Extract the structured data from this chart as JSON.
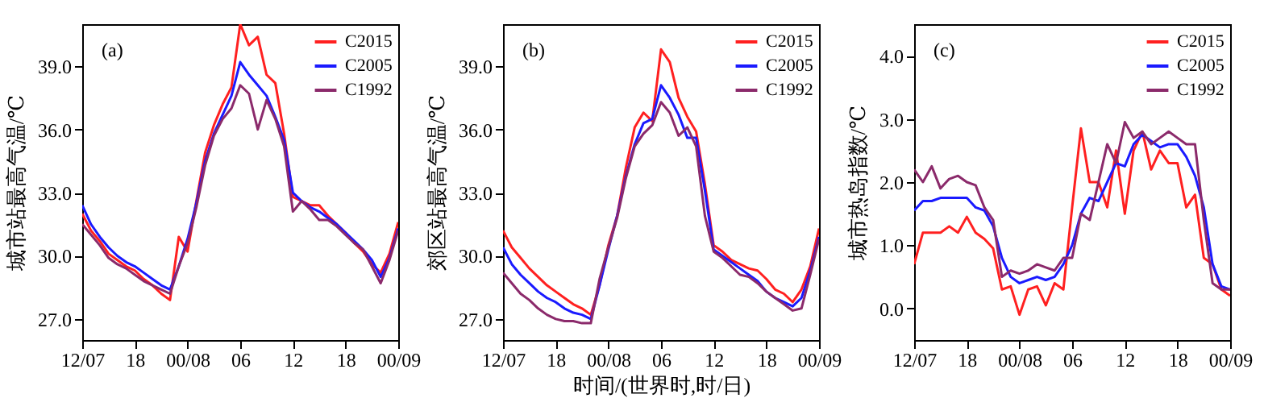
{
  "chart_data": [
    {
      "type": "line",
      "ylabel": "城市站最高气温/℃",
      "annotations": [
        "(a)"
      ],
      "categories": [
        "12/07",
        null,
        null,
        null,
        null,
        null,
        "18",
        null,
        null,
        null,
        null,
        null,
        "00/08",
        null,
        null,
        null,
        null,
        null,
        "06",
        null,
        null,
        null,
        null,
        null,
        "12",
        null,
        null,
        null,
        null,
        null,
        "18",
        null,
        null,
        null,
        null,
        null,
        "00/09"
      ],
      "ylim": [
        26,
        41
      ],
      "yticks": [
        {
          "value": 27,
          "label": "27.0"
        },
        {
          "value": 30,
          "label": "30.0"
        },
        {
          "value": 33,
          "label": "33.0"
        },
        {
          "value": 36,
          "label": "36.0"
        },
        {
          "value": 39,
          "label": "39.0"
        }
      ],
      "grid": false,
      "legend": "top right",
      "line_style": "solid",
      "marker": "none",
      "series": [
        {
          "name": "C2015",
          "color": "#ff2020",
          "values": [
            32.0,
            31.2,
            30.7,
            30.1,
            29.8,
            29.5,
            29.3,
            28.9,
            28.6,
            28.2,
            27.9,
            30.9,
            30.2,
            32.6,
            34.9,
            36.2,
            37.2,
            38.0,
            41.0,
            40.0,
            40.4,
            38.6,
            38.2,
            35.8,
            32.8,
            32.6,
            32.4,
            32.4,
            31.9,
            31.5,
            31.1,
            30.6,
            30.2,
            29.6,
            29.2,
            30.1,
            31.6
          ]
        },
        {
          "name": "C2005",
          "color": "#1a1aff",
          "values": [
            32.4,
            31.5,
            30.9,
            30.4,
            30.0,
            29.7,
            29.5,
            29.2,
            28.9,
            28.6,
            28.4,
            29.5,
            30.8,
            32.5,
            34.5,
            35.8,
            36.7,
            37.6,
            39.2,
            38.6,
            38.1,
            37.6,
            36.6,
            35.5,
            33.0,
            32.6,
            32.3,
            32.1,
            31.8,
            31.5,
            31.1,
            30.7,
            30.3,
            29.8,
            29.0,
            29.9,
            31.3
          ]
        },
        {
          "name": "C1992",
          "color": "#8b2a6b",
          "values": [
            31.5,
            31.0,
            30.5,
            29.9,
            29.6,
            29.4,
            29.1,
            28.8,
            28.6,
            28.4,
            28.2,
            29.5,
            30.6,
            32.3,
            34.3,
            35.7,
            36.5,
            37.0,
            38.1,
            37.7,
            36.0,
            37.4,
            36.5,
            35.2,
            32.1,
            32.6,
            32.2,
            31.7,
            31.7,
            31.4,
            31.0,
            30.6,
            30.3,
            29.5,
            28.7,
            29.8,
            31.2
          ]
        }
      ]
    },
    {
      "type": "line",
      "ylabel": "郊区站最高气温/℃",
      "xlabel": "时间/(世界时,时/日)",
      "annotations": [
        "(b)"
      ],
      "categories": [
        "12/07",
        null,
        null,
        null,
        null,
        null,
        "18",
        null,
        null,
        null,
        null,
        null,
        "00/08",
        null,
        null,
        null,
        null,
        null,
        "06",
        null,
        null,
        null,
        null,
        null,
        "12",
        null,
        null,
        null,
        null,
        null,
        "18",
        null,
        null,
        null,
        null,
        null,
        "00/09"
      ],
      "ylim": [
        26,
        41
      ],
      "yticks": [
        {
          "value": 27,
          "label": "27.0"
        },
        {
          "value": 30,
          "label": "30.0"
        },
        {
          "value": 33,
          "label": "33.0"
        },
        {
          "value": 36,
          "label": "36.0"
        },
        {
          "value": 39,
          "label": "39.0"
        }
      ],
      "grid": false,
      "legend": "top right",
      "line_style": "solid",
      "marker": "none",
      "series": [
        {
          "name": "C2015",
          "color": "#ff2020",
          "values": [
            31.2,
            30.4,
            29.9,
            29.4,
            29.0,
            28.6,
            28.3,
            28.0,
            27.7,
            27.5,
            27.2,
            28.6,
            30.5,
            31.9,
            34.2,
            36.1,
            36.8,
            36.4,
            39.8,
            39.2,
            37.5,
            36.6,
            35.9,
            33.4,
            30.5,
            30.2,
            29.8,
            29.6,
            29.4,
            29.3,
            28.9,
            28.4,
            28.2,
            27.8,
            28.4,
            29.5,
            31.3
          ]
        },
        {
          "name": "C2005",
          "color": "#1a1aff",
          "values": [
            30.4,
            29.6,
            29.1,
            28.7,
            28.3,
            28.0,
            27.8,
            27.5,
            27.3,
            27.2,
            27.0,
            28.6,
            30.3,
            31.9,
            33.8,
            35.3,
            36.3,
            36.5,
            38.1,
            37.5,
            36.7,
            35.6,
            35.6,
            33.1,
            30.3,
            30.0,
            29.7,
            29.4,
            29.1,
            28.8,
            28.3,
            28.0,
            27.8,
            27.6,
            28.0,
            29.3,
            30.9
          ]
        },
        {
          "name": "C1992",
          "color": "#8b2a6b",
          "values": [
            29.2,
            28.7,
            28.2,
            27.9,
            27.5,
            27.2,
            27.0,
            26.9,
            26.9,
            26.8,
            26.8,
            28.9,
            30.4,
            31.8,
            33.7,
            35.2,
            35.8,
            36.2,
            37.3,
            36.8,
            35.7,
            36.1,
            35.2,
            31.9,
            30.2,
            29.9,
            29.5,
            29.1,
            29.0,
            28.7,
            28.3,
            28.0,
            27.7,
            27.4,
            27.5,
            29.1,
            30.8
          ]
        }
      ]
    },
    {
      "type": "line",
      "ylabel": "城市热岛指数/℃",
      "annotations": [
        "(c)"
      ],
      "categories": [
        "12/07",
        null,
        null,
        null,
        null,
        null,
        "18",
        null,
        null,
        null,
        null,
        null,
        "00/08",
        null,
        null,
        null,
        null,
        null,
        "06",
        null,
        null,
        null,
        null,
        null,
        "12",
        null,
        null,
        null,
        null,
        null,
        "18",
        null,
        null,
        null,
        null,
        null,
        "00/09"
      ],
      "ylim": [
        -0.5,
        4.5
      ],
      "yticks": [
        {
          "value": 0,
          "label": "0.0"
        },
        {
          "value": 1,
          "label": "1.0"
        },
        {
          "value": 2,
          "label": "2.0"
        },
        {
          "value": 3,
          "label": "3.0"
        },
        {
          "value": 4,
          "label": "4.0"
        }
      ],
      "grid": false,
      "legend": "top right",
      "line_style": "solid",
      "marker": "none",
      "series": [
        {
          "name": "C2015",
          "color": "#ff2020",
          "values": [
            0.7,
            1.2,
            1.2,
            1.2,
            1.3,
            1.2,
            1.45,
            1.2,
            1.1,
            0.95,
            0.3,
            0.35,
            -0.1,
            0.3,
            0.35,
            0.05,
            0.4,
            0.3,
            1.6,
            2.85,
            2.0,
            2.0,
            1.6,
            2.5,
            1.5,
            2.5,
            2.8,
            2.2,
            2.5,
            2.3,
            2.3,
            1.6,
            1.8,
            0.8,
            0.7,
            0.3,
            0.2
          ]
        },
        {
          "name": "C2005",
          "color": "#1a1aff",
          "values": [
            1.55,
            1.7,
            1.7,
            1.75,
            1.75,
            1.75,
            1.75,
            1.6,
            1.55,
            1.3,
            0.8,
            0.5,
            0.4,
            0.45,
            0.5,
            0.45,
            0.5,
            0.7,
            1.0,
            1.5,
            1.75,
            1.7,
            2.0,
            2.3,
            2.25,
            2.6,
            2.75,
            2.65,
            2.55,
            2.6,
            2.6,
            2.4,
            2.1,
            1.6,
            0.7,
            0.35,
            0.3
          ]
        },
        {
          "name": "C1992",
          "color": "#8b2a6b",
          "values": [
            2.2,
            2.0,
            2.25,
            1.9,
            2.05,
            2.1,
            2.0,
            1.95,
            1.6,
            1.4,
            0.5,
            0.6,
            0.55,
            0.6,
            0.7,
            0.65,
            0.6,
            0.8,
            0.8,
            1.5,
            1.4,
            2.0,
            2.6,
            2.3,
            2.95,
            2.7,
            2.8,
            2.6,
            2.7,
            2.8,
            2.7,
            2.6,
            2.6,
            1.4,
            0.4,
            0.3,
            0.3
          ]
        }
      ]
    }
  ]
}
